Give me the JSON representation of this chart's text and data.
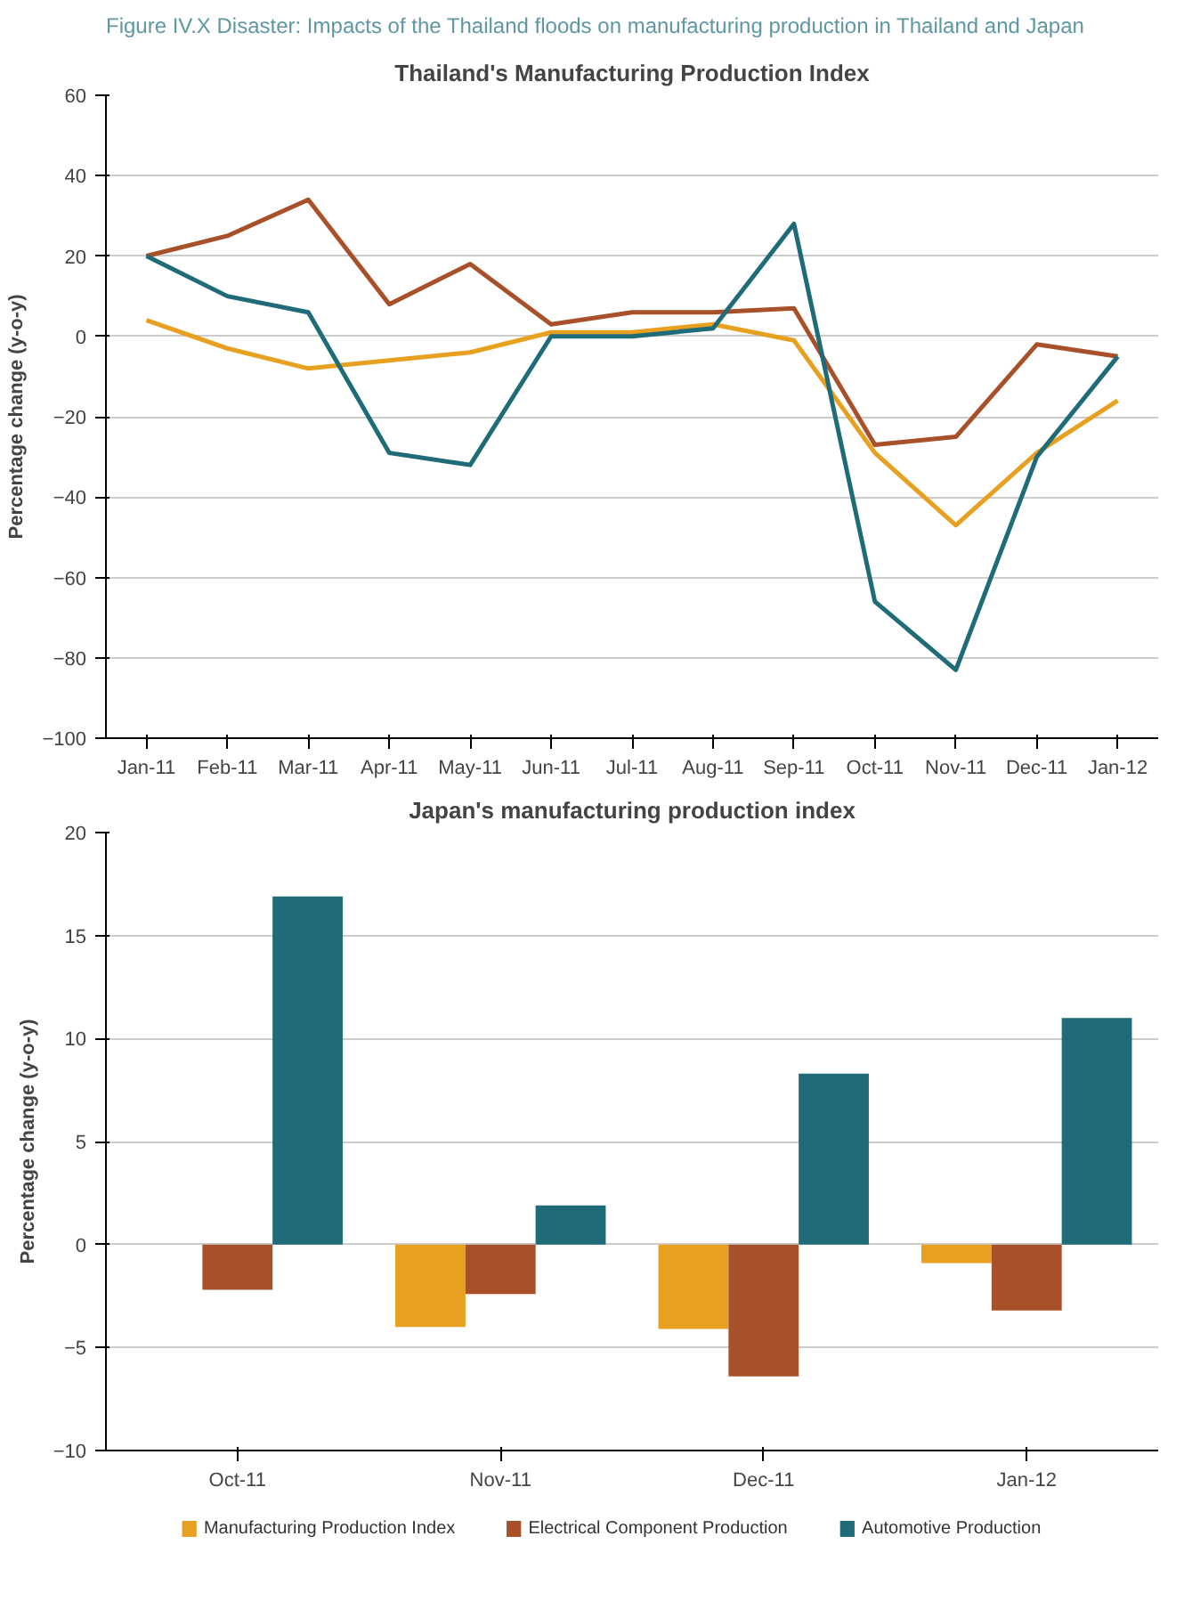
{
  "chart_data": [
    {
      "type": "line",
      "title": "Thailand's Manufacturing Production Index",
      "annotations": [
        "Figure IV.X Disaster: Impacts of the Thailand floods on manufacturing production in Thailand and Japan"
      ],
      "ylabel": "Percentage change (y-o-y)",
      "categories": [
        "Jan-11",
        "Feb-11",
        "Mar-11",
        "Apr-11",
        "May-11",
        "Jun-11",
        "Jul-11",
        "Aug-11",
        "Sep-11",
        "Oct-11",
        "Nov-11",
        "Dec-11",
        "Jan-12"
      ],
      "series": [
        {
          "color": "#e8a020",
          "values": [
            4,
            -3,
            -8,
            -6,
            -4,
            1,
            1,
            3,
            -1,
            -29,
            -47,
            -29,
            -16
          ]
        },
        {
          "color": "#a8502a",
          "values": [
            20,
            25,
            34,
            8,
            18,
            3,
            6,
            6,
            7,
            -27,
            -25,
            -2,
            -5
          ]
        },
        {
          "color": "#1f6b78",
          "values": [
            20,
            10,
            6,
            -29,
            -32,
            0,
            0,
            2,
            28,
            -66,
            -83,
            -30,
            -5
          ]
        }
      ],
      "ylim": [
        -100,
        60
      ],
      "yticks": [
        -100,
        -80,
        -60,
        -40,
        -20,
        0,
        20,
        40,
        60
      ],
      "grid": "y",
      "line_style": "solid",
      "marker": "none"
    },
    {
      "type": "bar",
      "title": "Japan's manufacturing production index",
      "ylabel": "Percentage change (y-o-y)",
      "categories": [
        "Oct-11",
        "Nov-11",
        "Dec-11",
        "Jan-12"
      ],
      "series": [
        {
          "name": "Manufacturing Production Index",
          "color": "#e8a020",
          "values": [
            null,
            -4.0,
            -4.1,
            -0.9
          ]
        },
        {
          "name": "Electrical Component Production",
          "color": "#a8502a",
          "values": [
            -2.2,
            -2.4,
            -6.4,
            -3.2
          ]
        },
        {
          "name": "Automotive Production",
          "color": "#1f6b78",
          "values": [
            16.9,
            1.9,
            8.3,
            11.0
          ]
        }
      ],
      "ylim": [
        -10,
        20
      ],
      "yticks": [
        -10,
        -5,
        0,
        5,
        10,
        15,
        20
      ],
      "grid": "y",
      "legend": "bottom"
    }
  ]
}
